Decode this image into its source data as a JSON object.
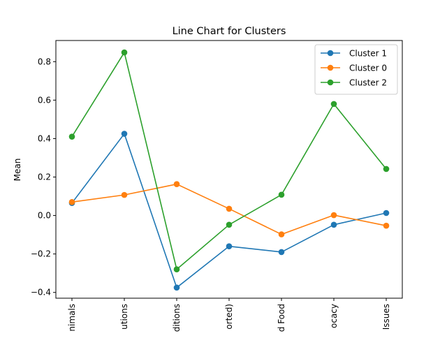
{
  "chart_data": {
    "type": "line",
    "title": "Line Chart for Clusters",
    "xlabel": "",
    "ylabel": "Mean",
    "categories": [
      "nimals",
      "utions",
      "ditions",
      "orted)",
      "d Food",
      "ocacy",
      "Issues"
    ],
    "ylim": [
      -0.43,
      0.91
    ],
    "yticks": [
      -0.4,
      -0.2,
      0.0,
      0.2,
      0.4,
      0.6,
      0.8
    ],
    "ytick_labels": [
      "−0.4",
      "−0.2",
      "0.0",
      "0.2",
      "0.4",
      "0.6",
      "0.8"
    ],
    "grid": false,
    "legend_position": "top-right",
    "series": [
      {
        "name": "Cluster 1",
        "color": "#1f77b4",
        "values": [
          0.065,
          0.425,
          -0.375,
          -0.16,
          -0.19,
          -0.048,
          0.013
        ]
      },
      {
        "name": "Cluster 0",
        "color": "#ff7f0e",
        "values": [
          0.07,
          0.107,
          0.163,
          0.035,
          -0.098,
          0.002,
          -0.053
        ]
      },
      {
        "name": "Cluster 2",
        "color": "#2ca02c",
        "values": [
          0.41,
          0.848,
          -0.28,
          -0.048,
          0.108,
          0.58,
          0.242
        ]
      }
    ]
  }
}
